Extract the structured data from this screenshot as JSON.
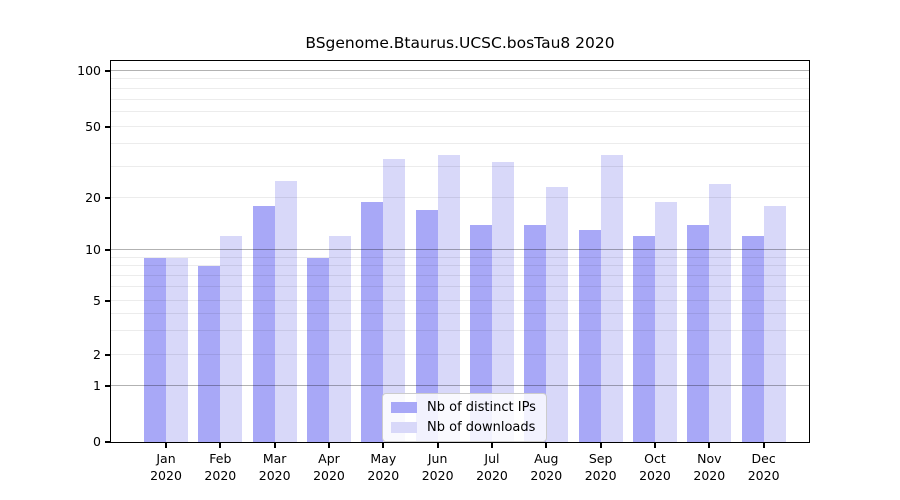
{
  "title": "BSgenome.Btaurus.UCSC.bosTau8 2020",
  "chart_data": {
    "type": "bar",
    "title": "BSgenome.Btaurus.UCSC.bosTau8 2020",
    "categories": [
      "Jan 2020",
      "Feb 2020",
      "Mar 2020",
      "Apr 2020",
      "May 2020",
      "Jun 2020",
      "Jul 2020",
      "Aug 2020",
      "Sep 2020",
      "Oct 2020",
      "Nov 2020",
      "Dec 2020"
    ],
    "series": [
      {
        "name": "Nb of distinct IPs",
        "color": "#a8a8f7",
        "values": [
          9,
          8,
          18,
          9,
          19,
          17,
          14,
          14,
          13,
          12,
          14,
          12
        ]
      },
      {
        "name": "Nb of downloads",
        "color": "#d8d8f9",
        "values": [
          9,
          12,
          25,
          12,
          33,
          35,
          32,
          23,
          35,
          19,
          24,
          18
        ]
      }
    ],
    "yscale": "log",
    "ylim": [
      0,
      100
    ],
    "y_ticks": [
      0,
      1,
      2,
      5,
      10,
      20,
      50,
      100
    ],
    "xlabel": "",
    "ylabel": "",
    "grid": true,
    "legend_position": "bottom-center"
  },
  "x_axis": {
    "months": [
      "Jan",
      "Feb",
      "Mar",
      "Apr",
      "May",
      "Jun",
      "Jul",
      "Aug",
      "Sep",
      "Oct",
      "Nov",
      "Dec"
    ],
    "year": "2020"
  },
  "y_axis": {
    "tick_labels": [
      "100",
      "50",
      "20",
      "10",
      "5",
      "2",
      "1",
      "0"
    ]
  },
  "legend": {
    "items": [
      {
        "label": "Nb of distinct IPs"
      },
      {
        "label": "Nb of downloads"
      }
    ]
  }
}
